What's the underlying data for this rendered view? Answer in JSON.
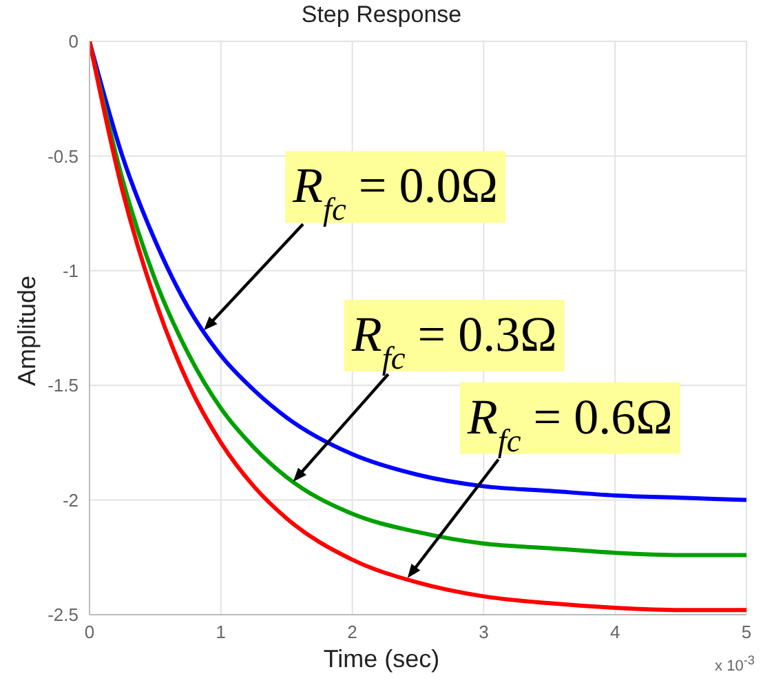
{
  "chart_data": {
    "type": "line",
    "title": "Step Response",
    "xlabel": "Time (sec)",
    "ylabel": "Amplitude",
    "x": [
      0,
      0.25,
      0.5,
      0.75,
      1,
      1.25,
      1.5,
      2,
      2.5,
      3,
      3.5,
      4,
      4.5,
      5
    ],
    "series": [
      {
        "color": "#0000ff",
        "values": [
          0,
          -0.5,
          -0.87,
          -1.16,
          -1.37,
          -1.52,
          -1.64,
          -1.8,
          -1.89,
          -1.94,
          -1.96,
          -1.98,
          -1.99,
          -2.0
        ]
      },
      {
        "color": "#00a000",
        "values": [
          0,
          -0.6,
          -1.04,
          -1.36,
          -1.6,
          -1.77,
          -1.9,
          -2.06,
          -2.14,
          -2.19,
          -2.21,
          -2.23,
          -2.24,
          -2.24
        ]
      },
      {
        "color": "#ff0000",
        "values": [
          0,
          -0.65,
          -1.13,
          -1.49,
          -1.75,
          -1.94,
          -2.08,
          -2.26,
          -2.36,
          -2.42,
          -2.45,
          -2.47,
          -2.48,
          -2.48
        ]
      }
    ],
    "xlim": [
      0,
      5
    ],
    "xticks": [
      0,
      1,
      2,
      3,
      4,
      5
    ],
    "ylim": [
      -2.5,
      0
    ],
    "yticks": [
      -2.5,
      -2,
      -1.5,
      -1,
      -0.5,
      0
    ],
    "grid": true,
    "legend": false,
    "marker": "none",
    "line_style": "solid",
    "annotations": [
      {
        "text": "R$_{fc}$ = 0.0Ω",
        "x": 0.87,
        "y": -1.26
      },
      {
        "text": "R$_{fc}$ = 0.3Ω",
        "x": 1.55,
        "y": -1.92
      },
      {
        "text": "R$_{fc}$ = 0.6Ω",
        "x": 2.42,
        "y": -2.34
      },
      "x 10$^{-3}$"
    ]
  }
}
